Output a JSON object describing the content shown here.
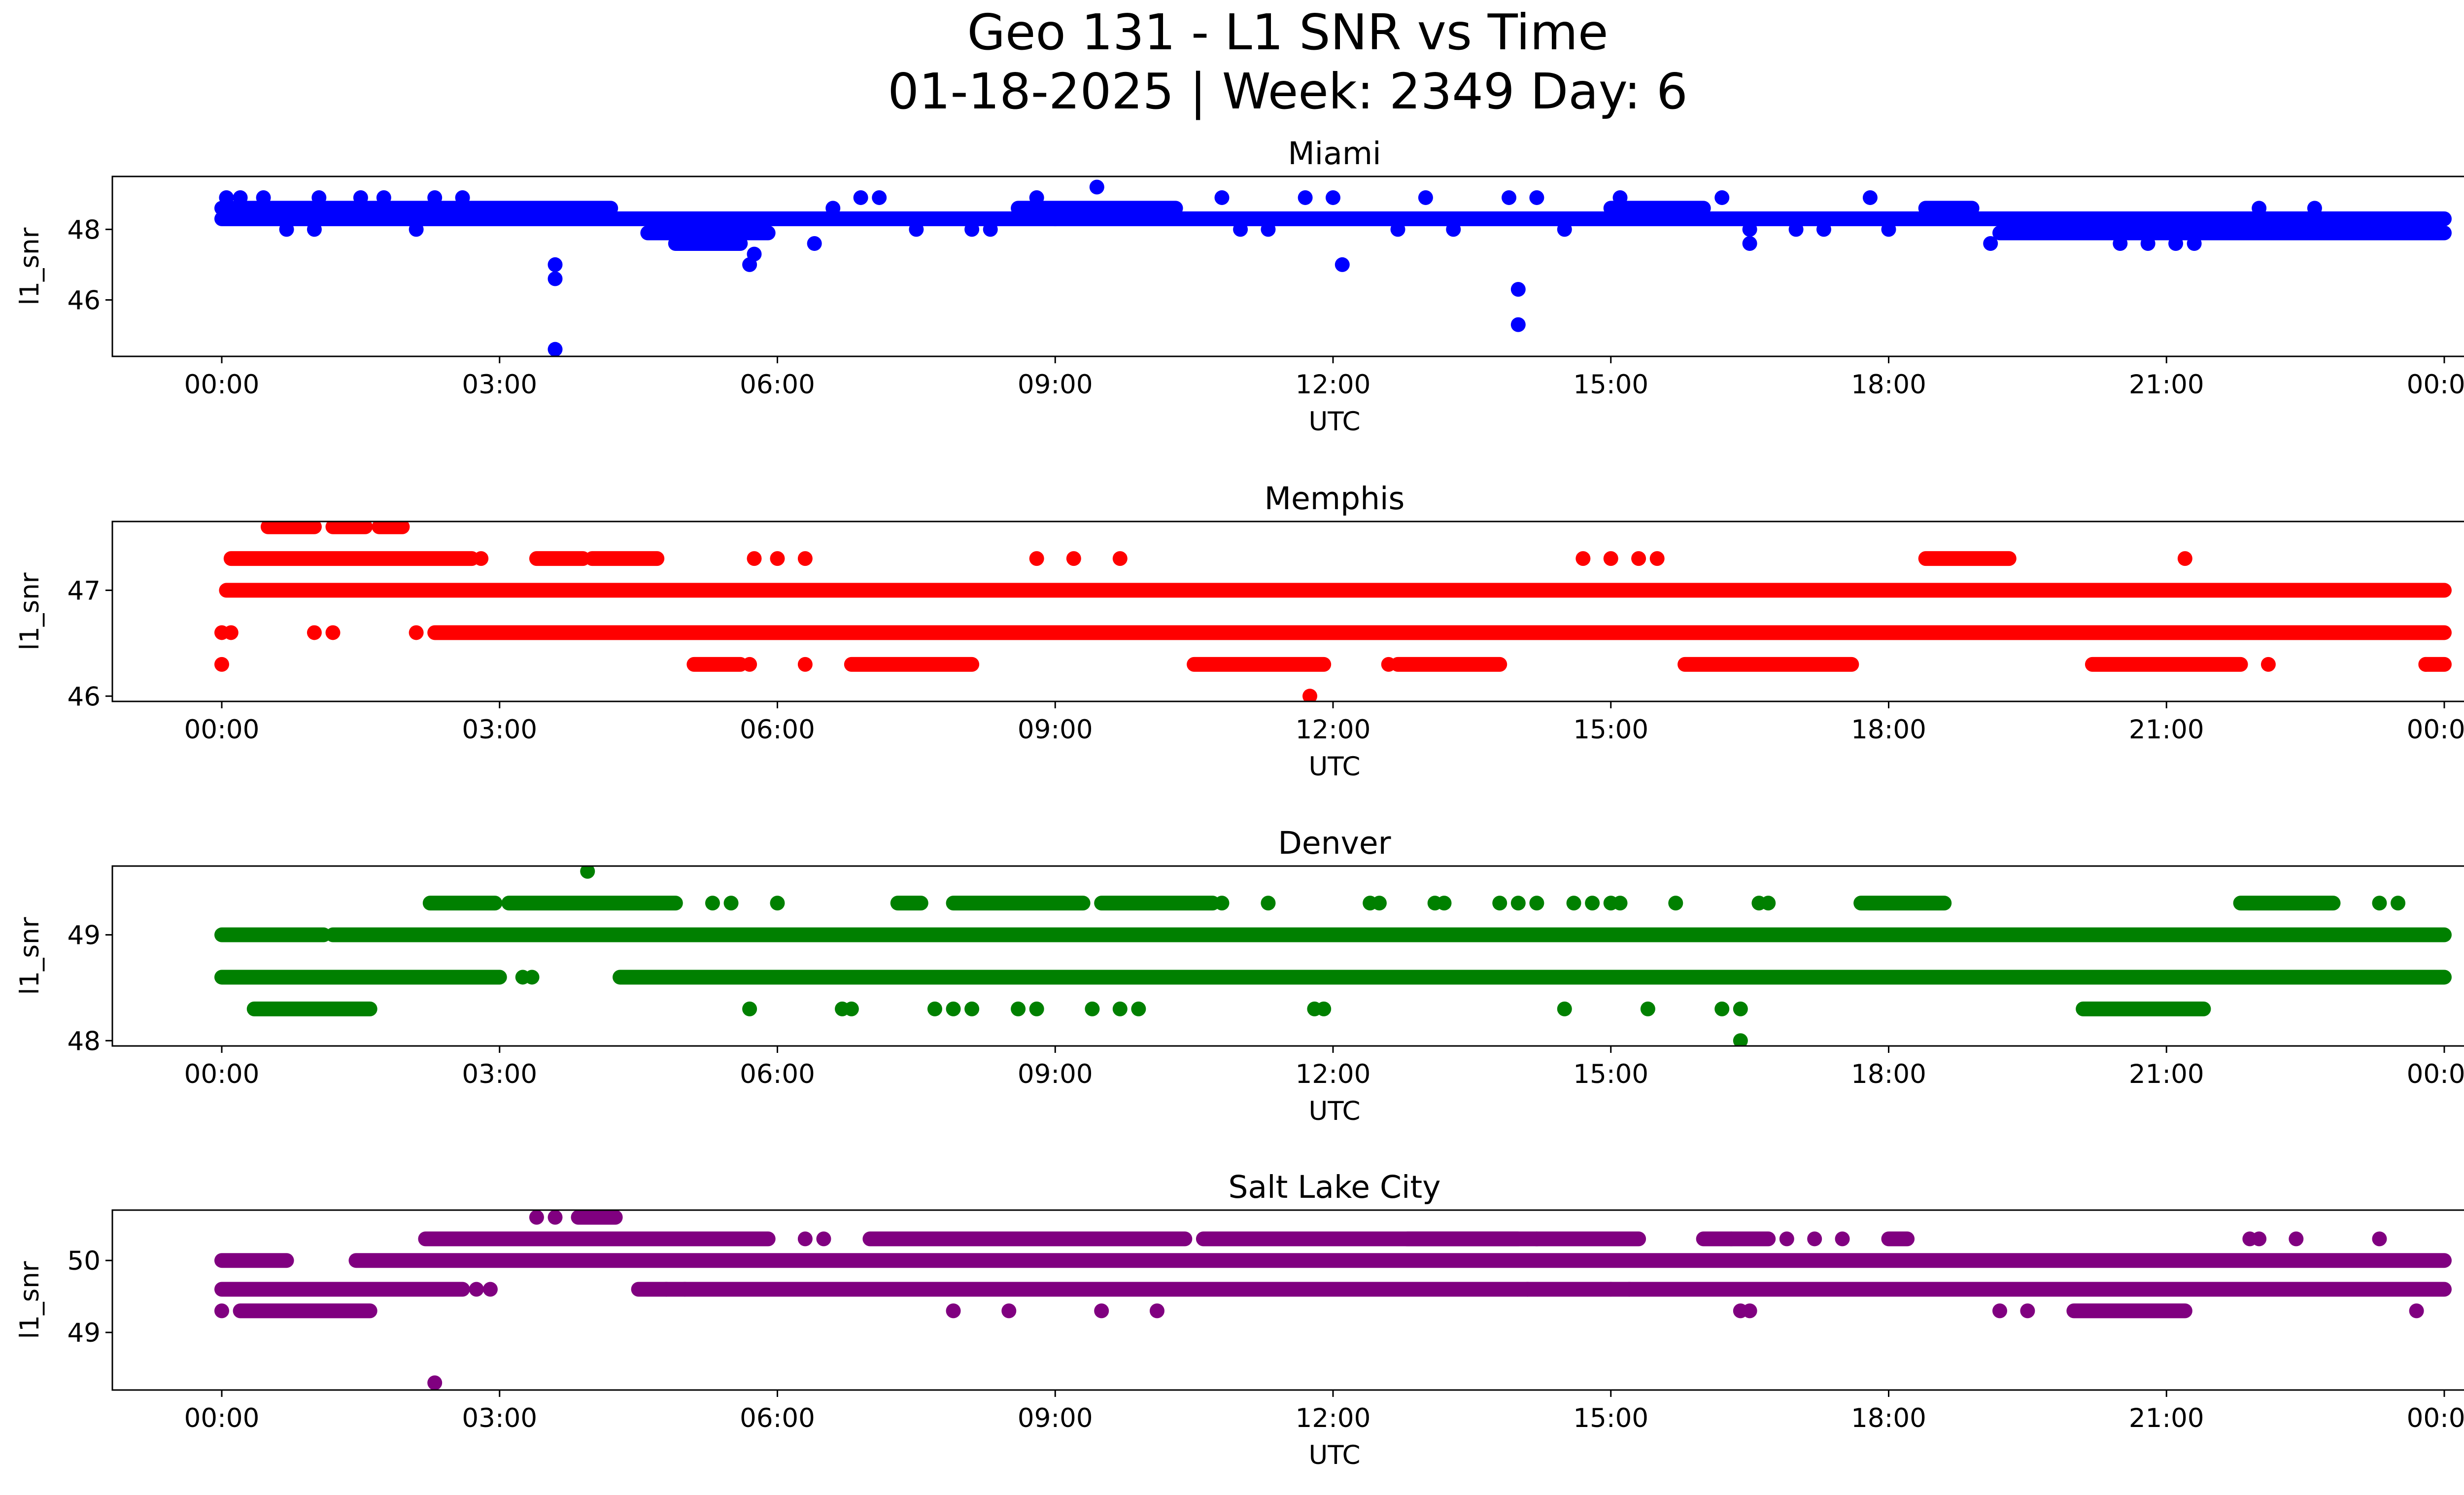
{
  "figure": {
    "title_line1": "Geo 131 - L1 SNR vs Time",
    "title_line2": "01-18-2025 | Week: 2349 Day: 6"
  },
  "colors": {
    "Miami": "#0000ff",
    "Memphis": "#ff0000",
    "Denver": "#008000",
    "Salt Lake City": "#800080"
  },
  "chart_data": [
    {
      "type": "scatter",
      "title": "Miami",
      "xlabel": "UTC",
      "ylabel": "l1_snr",
      "xlim": [
        0,
        24
      ],
      "ylim": [
        44.4,
        49.5
      ],
      "x_ticks": [
        "00:00",
        "03:00",
        "06:00",
        "09:00",
        "12:00",
        "15:00",
        "18:00",
        "21:00",
        "00:00"
      ],
      "y_ticks": [
        46,
        48
      ],
      "band_levels": [
        48.3,
        48.6
      ],
      "segments": [
        {
          "level": 48.6,
          "ranges": [
            [
              0,
              4.2
            ],
            [
              8.6,
              10.3
            ],
            [
              15.0,
              16.0
            ],
            [
              18.4,
              18.9
            ]
          ]
        },
        {
          "level": 48.3,
          "ranges": [
            [
              0,
              24
            ]
          ]
        },
        {
          "level": 47.9,
          "ranges": [
            [
              4.6,
              5.9
            ],
            [
              19.2,
              24
            ]
          ]
        },
        {
          "level": 47.6,
          "ranges": [
            [
              4.9,
              5.6
            ]
          ]
        }
      ],
      "extra_points": [
        [
          0.05,
          48.9
        ],
        [
          0.2,
          48.9
        ],
        [
          0.45,
          48.9
        ],
        [
          0.7,
          48.0
        ],
        [
          1.0,
          48.0
        ],
        [
          1.05,
          48.9
        ],
        [
          1.5,
          48.9
        ],
        [
          1.75,
          48.9
        ],
        [
          2.1,
          48.0
        ],
        [
          2.3,
          48.9
        ],
        [
          2.6,
          48.9
        ],
        [
          3.6,
          47.0
        ],
        [
          3.6,
          46.6
        ],
        [
          3.6,
          44.6
        ],
        [
          4.9,
          48.0
        ],
        [
          5.3,
          47.6
        ],
        [
          5.7,
          47.0
        ],
        [
          5.75,
          47.3
        ],
        [
          6.4,
          47.6
        ],
        [
          6.6,
          48.6
        ],
        [
          6.9,
          48.9
        ],
        [
          7.1,
          48.9
        ],
        [
          7.5,
          48.0
        ],
        [
          8.1,
          48.0
        ],
        [
          8.3,
          48.0
        ],
        [
          8.8,
          48.9
        ],
        [
          9.0,
          48.3
        ],
        [
          9.45,
          49.2
        ],
        [
          10.8,
          48.9
        ],
        [
          11.0,
          48.0
        ],
        [
          11.3,
          48.0
        ],
        [
          11.7,
          48.9
        ],
        [
          12.0,
          48.9
        ],
        [
          12.1,
          47.0
        ],
        [
          12.7,
          48.0
        ],
        [
          13.0,
          48.9
        ],
        [
          13.3,
          48.0
        ],
        [
          13.9,
          48.9
        ],
        [
          14.0,
          46.3
        ],
        [
          14.0,
          45.3
        ],
        [
          14.2,
          48.9
        ],
        [
          14.5,
          48.0
        ],
        [
          15.1,
          48.9
        ],
        [
          16.2,
          48.9
        ],
        [
          16.5,
          47.6
        ],
        [
          16.5,
          48.0
        ],
        [
          17.0,
          48.0
        ],
        [
          17.3,
          48.0
        ],
        [
          17.8,
          48.9
        ],
        [
          18.0,
          48.0
        ],
        [
          19.1,
          47.6
        ],
        [
          20.5,
          47.6
        ],
        [
          20.8,
          47.6
        ],
        [
          21.1,
          47.6
        ],
        [
          21.3,
          47.6
        ],
        [
          22.0,
          48.6
        ],
        [
          22.6,
          48.6
        ],
        [
          23.0,
          48.0
        ],
        [
          23.4,
          48.0
        ]
      ]
    },
    {
      "type": "scatter",
      "title": "Memphis",
      "xlabel": "UTC",
      "ylabel": "l1_snr",
      "xlim": [
        0,
        24
      ],
      "ylim": [
        45.95,
        47.65
      ],
      "x_ticks": [
        "00:00",
        "03:00",
        "06:00",
        "09:00",
        "12:00",
        "15:00",
        "18:00",
        "21:00",
        "00:00"
      ],
      "y_ticks": [
        46,
        47
      ],
      "band_levels": [
        47.0,
        46.6
      ],
      "segments": [
        {
          "level": 47.6,
          "ranges": [
            [
              0.5,
              1.0
            ],
            [
              1.2,
              1.55
            ],
            [
              1.7,
              1.95
            ]
          ]
        },
        {
          "level": 47.3,
          "ranges": [
            [
              0.1,
              2.7
            ],
            [
              3.4,
              3.9
            ],
            [
              4.0,
              4.7
            ],
            [
              18.4,
              19.3
            ]
          ]
        },
        {
          "level": 47.0,
          "ranges": [
            [
              0.05,
              24
            ]
          ]
        },
        {
          "level": 46.6,
          "ranges": [
            [
              2.3,
              24
            ]
          ]
        },
        {
          "level": 46.3,
          "ranges": [
            [
              5.1,
              5.6
            ],
            [
              6.8,
              8.1
            ],
            [
              10.5,
              11.9
            ],
            [
              12.7,
              13.8
            ],
            [
              15.8,
              17.6
            ],
            [
              20.2,
              21.8
            ],
            [
              23.8,
              24.0
            ]
          ]
        }
      ],
      "extra_points": [
        [
          0.0,
          46.3
        ],
        [
          0.0,
          46.6
        ],
        [
          0.1,
          46.6
        ],
        [
          1.0,
          46.6
        ],
        [
          1.2,
          46.6
        ],
        [
          2.1,
          46.6
        ],
        [
          2.8,
          47.3
        ],
        [
          5.7,
          46.3
        ],
        [
          5.75,
          47.3
        ],
        [
          6.0,
          47.3
        ],
        [
          6.3,
          46.3
        ],
        [
          6.3,
          47.3
        ],
        [
          8.8,
          47.3
        ],
        [
          9.2,
          47.3
        ],
        [
          9.7,
          47.3
        ],
        [
          11.2,
          47.0
        ],
        [
          11.75,
          46.0
        ],
        [
          12.6,
          46.3
        ],
        [
          14.7,
          47.3
        ],
        [
          15.0,
          47.3
        ],
        [
          15.3,
          47.3
        ],
        [
          15.5,
          47.3
        ],
        [
          18.0,
          46.6
        ],
        [
          21.2,
          47.3
        ],
        [
          22.1,
          46.3
        ],
        [
          23.8,
          46.3
        ]
      ]
    },
    {
      "type": "scatter",
      "title": "Denver",
      "xlabel": "UTC",
      "ylabel": "l1_snr",
      "xlim": [
        0,
        24
      ],
      "ylim": [
        47.95,
        49.65
      ],
      "x_ticks": [
        "00:00",
        "03:00",
        "06:00",
        "09:00",
        "12:00",
        "15:00",
        "18:00",
        "21:00",
        "00:00"
      ],
      "y_ticks": [
        48,
        49
      ],
      "band_levels": [
        49.0,
        48.6
      ],
      "segments": [
        {
          "level": 49.3,
          "ranges": [
            [
              2.25,
              2.95
            ],
            [
              3.1,
              4.9
            ],
            [
              7.3,
              7.55
            ],
            [
              7.9,
              9.3
            ],
            [
              9.5,
              10.7
            ],
            [
              17.7,
              18.6
            ],
            [
              21.8,
              22.8
            ]
          ]
        },
        {
          "level": 49.0,
          "ranges": [
            [
              0,
              1.1
            ],
            [
              1.2,
              24
            ]
          ]
        },
        {
          "level": 48.6,
          "ranges": [
            [
              0,
              3.0
            ],
            [
              4.3,
              24
            ]
          ]
        },
        {
          "level": 48.3,
          "ranges": [
            [
              0.35,
              1.6
            ],
            [
              20.1,
              21.4
            ]
          ]
        }
      ],
      "extra_points": [
        [
          3.25,
          48.6
        ],
        [
          3.35,
          48.6
        ],
        [
          3.95,
          49.6
        ],
        [
          5.3,
          49.3
        ],
        [
          5.5,
          49.3
        ],
        [
          5.7,
          48.3
        ],
        [
          6.0,
          49.3
        ],
        [
          6.7,
          48.3
        ],
        [
          6.8,
          48.3
        ],
        [
          7.7,
          48.3
        ],
        [
          7.9,
          48.3
        ],
        [
          8.1,
          48.3
        ],
        [
          8.6,
          48.3
        ],
        [
          8.8,
          48.3
        ],
        [
          9.4,
          48.3
        ],
        [
          9.7,
          48.3
        ],
        [
          9.9,
          48.3
        ],
        [
          10.8,
          49.3
        ],
        [
          11.3,
          49.3
        ],
        [
          11.8,
          48.3
        ],
        [
          11.9,
          48.3
        ],
        [
          12.4,
          49.3
        ],
        [
          12.5,
          49.3
        ],
        [
          13.1,
          49.3
        ],
        [
          13.2,
          49.3
        ],
        [
          13.8,
          49.3
        ],
        [
          14.0,
          49.3
        ],
        [
          14.2,
          49.3
        ],
        [
          14.5,
          48.3
        ],
        [
          14.6,
          49.3
        ],
        [
          14.8,
          49.3
        ],
        [
          15.0,
          49.3
        ],
        [
          15.1,
          49.3
        ],
        [
          15.4,
          48.3
        ],
        [
          15.7,
          49.3
        ],
        [
          16.2,
          48.3
        ],
        [
          16.4,
          48.3
        ],
        [
          16.4,
          48.0
        ],
        [
          16.6,
          49.3
        ],
        [
          16.7,
          49.3
        ],
        [
          23.5,
          49.3
        ],
        [
          23.3,
          49.3
        ]
      ]
    },
    {
      "type": "scatter",
      "title": "Salt Lake City",
      "xlabel": "UTC",
      "ylabel": "l1_snr",
      "xlim": [
        0,
        24
      ],
      "ylim": [
        48.2,
        50.7
      ],
      "x_ticks": [
        "00:00",
        "03:00",
        "06:00",
        "09:00",
        "12:00",
        "15:00",
        "18:00",
        "21:00",
        "00:00"
      ],
      "y_ticks": [
        49,
        50
      ],
      "band_levels": [
        50.0,
        49.6
      ],
      "segments": [
        {
          "level": 50.6,
          "ranges": [
            [
              3.85,
              4.25
            ]
          ]
        },
        {
          "level": 50.3,
          "ranges": [
            [
              2.2,
              5.9
            ],
            [
              7.0,
              10.4
            ],
            [
              10.6,
              14.0
            ],
            [
              12.8,
              15.3
            ],
            [
              16.0,
              16.7
            ],
            [
              18.0,
              18.2
            ]
          ]
        },
        {
          "level": 50.0,
          "ranges": [
            [
              0,
              0.7
            ],
            [
              1.45,
              24
            ]
          ]
        },
        {
          "level": 49.6,
          "ranges": [
            [
              0,
              2.6
            ],
            [
              4.5,
              24
            ]
          ]
        },
        {
          "level": 49.3,
          "ranges": [
            [
              0.2,
              1.6
            ],
            [
              20.0,
              21.2
            ]
          ]
        }
      ],
      "extra_points": [
        [
          0.0,
          49.3
        ],
        [
          2.75,
          49.6
        ],
        [
          2.9,
          49.6
        ],
        [
          3.4,
          50.6
        ],
        [
          3.6,
          50.6
        ],
        [
          2.3,
          48.3
        ],
        [
          6.3,
          50.3
        ],
        [
          6.5,
          50.3
        ],
        [
          4.8,
          49.6
        ],
        [
          5.0,
          49.6
        ],
        [
          7.9,
          49.3
        ],
        [
          8.5,
          49.3
        ],
        [
          9.5,
          49.3
        ],
        [
          10.1,
          49.3
        ],
        [
          16.3,
          50.3
        ],
        [
          16.4,
          49.3
        ],
        [
          16.5,
          49.3
        ],
        [
          16.9,
          50.3
        ],
        [
          17.2,
          50.3
        ],
        [
          17.5,
          50.3
        ],
        [
          19.2,
          49.3
        ],
        [
          19.5,
          49.3
        ],
        [
          21.9,
          50.3
        ],
        [
          22.0,
          50.3
        ],
        [
          22.4,
          50.3
        ],
        [
          23.3,
          50.3
        ],
        [
          23.7,
          49.3
        ],
        [
          14.1,
          49.6
        ],
        [
          14.2,
          50.3
        ],
        [
          15.0,
          49.6
        ],
        [
          15.2,
          49.6
        ]
      ]
    }
  ]
}
